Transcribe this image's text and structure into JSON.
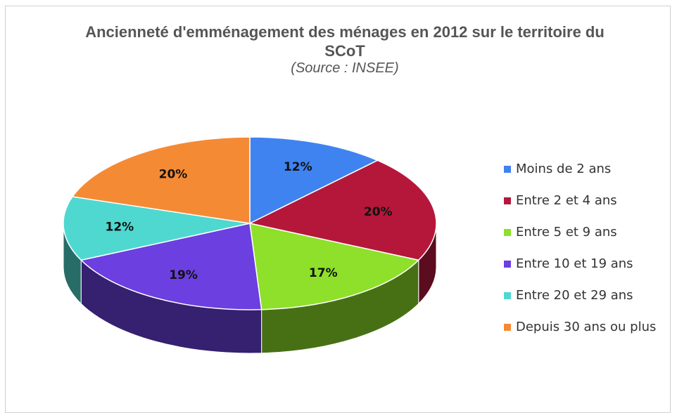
{
  "chart_data": {
    "type": "pie",
    "title": "Ancienneté d'emménagement des ménages en 2012 sur le territoire du SCoT",
    "subtitle": "(Source : INSEE)",
    "categories": [
      "Moins de 2 ans",
      "Entre 2 et 4 ans",
      "Entre 5 et 9 ans",
      "Entre 10 et 19 ans",
      "Entre 20 et 29 ans",
      "Depuis 30 ans ou plus"
    ],
    "values": [
      12,
      20,
      17,
      19,
      12,
      20
    ],
    "value_labels": [
      "12%",
      "20%",
      "17%",
      "19%",
      "12%",
      "20%"
    ],
    "colors": [
      "#3f83f0",
      "#b5173b",
      "#8ee02a",
      "#6b3fe0",
      "#4fd8d0",
      "#f58a35"
    ],
    "legend": "right"
  }
}
